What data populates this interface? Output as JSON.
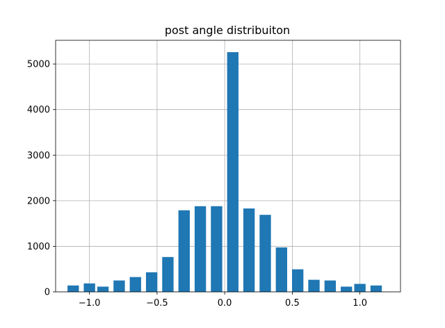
{
  "chart_data": {
    "type": "bar",
    "title": "post angle distribuiton",
    "xlabel": "",
    "ylabel": "",
    "xlim": [
      -1.25,
      1.3
    ],
    "ylim": [
      0,
      5520
    ],
    "grid": true,
    "bar_color": "#1f77b4",
    "bar_width": 0.084,
    "x": [
      -1.12,
      -1.0,
      -0.9,
      -0.78,
      -0.66,
      -0.54,
      -0.42,
      -0.3,
      -0.18,
      -0.06,
      0.06,
      0.18,
      0.3,
      0.42,
      0.54,
      0.66,
      0.78,
      0.9,
      1.0,
      1.12
    ],
    "values": [
      140,
      185,
      115,
      250,
      325,
      430,
      765,
      1790,
      1880,
      1880,
      5260,
      1830,
      1690,
      975,
      495,
      265,
      250,
      115,
      175,
      140
    ],
    "xticks": [
      -1.0,
      -0.5,
      0.0,
      0.5,
      1.0
    ],
    "xtick_labels": [
      "−1.0",
      "−0.5",
      "0.0",
      "0.5",
      "1.0"
    ],
    "yticks": [
      0,
      1000,
      2000,
      3000,
      4000,
      5000
    ],
    "ytick_labels": [
      "0",
      "1000",
      "2000",
      "3000",
      "4000",
      "5000"
    ]
  }
}
